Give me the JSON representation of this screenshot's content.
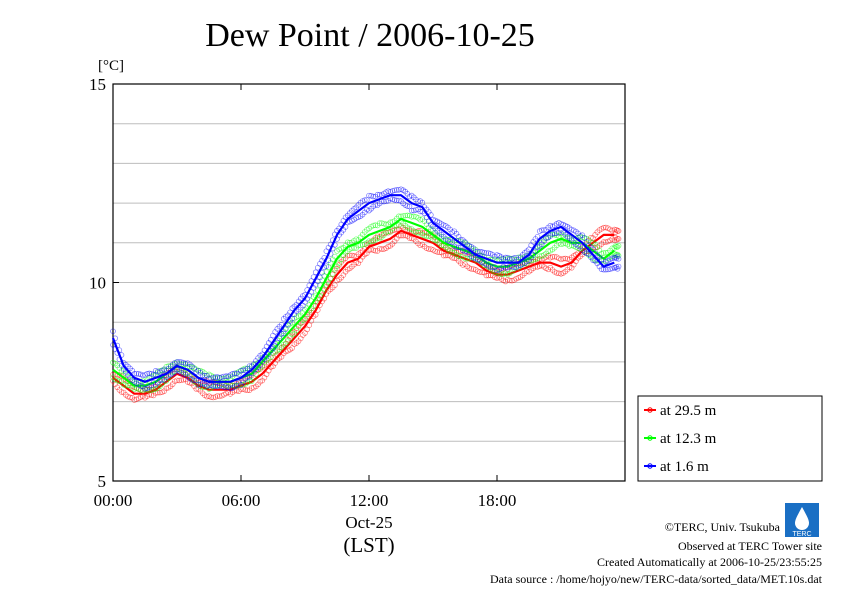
{
  "chart_data": {
    "type": "line",
    "title": "Dew Point / 2006-10-25",
    "ylabel": "[°C]",
    "xlabel": "(LST)",
    "x_date_label": "Oct-25",
    "ylim": [
      5,
      15
    ],
    "xlim": [
      0,
      24
    ],
    "x_ticks": [
      {
        "x": 0,
        "label": "00:00"
      },
      {
        "x": 6,
        "label": "06:00"
      },
      {
        "x": 12,
        "label": "12:00"
      },
      {
        "x": 18,
        "label": "18:00"
      }
    ],
    "y_ticks": [
      {
        "y": 5,
        "label": "5"
      },
      {
        "y": 10,
        "label": "10"
      },
      {
        "y": 15,
        "label": "15"
      }
    ],
    "grid_y": [
      6,
      7,
      8,
      9,
      10,
      11,
      12,
      13,
      14
    ],
    "legend": {
      "position": "right"
    },
    "series": [
      {
        "name": "at 29.5 m",
        "color": "#ff0000",
        "x": [
          0,
          0.5,
          1,
          1.5,
          2,
          2.5,
          3,
          3.5,
          4,
          4.5,
          5,
          5.5,
          6,
          6.5,
          7,
          7.5,
          8,
          8.5,
          9,
          9.5,
          10,
          10.5,
          11,
          11.5,
          12,
          12.5,
          13,
          13.5,
          14,
          14.5,
          15,
          15.5,
          16,
          16.5,
          17,
          17.5,
          18,
          18.5,
          19,
          19.5,
          20,
          20.5,
          21,
          21.5,
          22,
          22.5,
          23,
          23.5
        ],
        "values": [
          7.6,
          7.4,
          7.2,
          7.2,
          7.3,
          7.5,
          7.7,
          7.6,
          7.4,
          7.3,
          7.3,
          7.3,
          7.4,
          7.5,
          7.7,
          8.0,
          8.3,
          8.6,
          8.9,
          9.3,
          9.8,
          10.2,
          10.5,
          10.6,
          10.9,
          11.0,
          11.1,
          11.3,
          11.2,
          11.1,
          11.0,
          10.8,
          10.7,
          10.6,
          10.5,
          10.3,
          10.2,
          10.2,
          10.3,
          10.4,
          10.5,
          10.5,
          10.4,
          10.5,
          10.8,
          11.0,
          11.2,
          11.2
        ]
      },
      {
        "name": "at 12.3 m",
        "color": "#00ff00",
        "x": [
          0,
          0.5,
          1,
          1.5,
          2,
          2.5,
          3,
          3.5,
          4,
          4.5,
          5,
          5.5,
          6,
          6.5,
          7,
          7.5,
          8,
          8.5,
          9,
          9.5,
          10,
          10.5,
          11,
          11.5,
          12,
          12.5,
          13,
          13.5,
          14,
          14.5,
          15,
          15.5,
          16,
          16.5,
          17,
          17.5,
          18,
          18.5,
          19,
          19.5,
          20,
          20.5,
          21,
          21.5,
          22,
          22.5,
          23,
          23.5
        ],
        "values": [
          7.8,
          7.6,
          7.4,
          7.4,
          7.5,
          7.7,
          7.9,
          7.8,
          7.6,
          7.5,
          7.5,
          7.5,
          7.6,
          7.7,
          8.0,
          8.3,
          8.6,
          8.9,
          9.2,
          9.6,
          10.1,
          10.6,
          10.9,
          11.0,
          11.2,
          11.3,
          11.4,
          11.6,
          11.5,
          11.4,
          11.2,
          11.0,
          10.9,
          10.8,
          10.7,
          10.5,
          10.4,
          10.4,
          10.5,
          10.6,
          10.8,
          11.0,
          11.1,
          11.0,
          11.0,
          10.8,
          10.6,
          10.8
        ]
      },
      {
        "name": "at 1.6 m",
        "color": "#0000ff",
        "x": [
          0,
          0.5,
          1,
          1.5,
          2,
          2.5,
          3,
          3.5,
          4,
          4.5,
          5,
          5.5,
          6,
          6.5,
          7,
          7.5,
          8,
          8.5,
          9,
          9.5,
          10,
          10.5,
          11,
          11.5,
          12,
          12.5,
          13,
          13.5,
          14,
          14.5,
          15,
          15.5,
          16,
          16.5,
          17,
          17.5,
          18,
          18.5,
          19,
          19.5,
          20,
          20.5,
          21,
          21.5,
          22,
          22.5,
          23,
          23.5
        ],
        "values": [
          8.6,
          7.9,
          7.6,
          7.5,
          7.6,
          7.7,
          7.9,
          7.8,
          7.6,
          7.5,
          7.5,
          7.5,
          7.6,
          7.8,
          8.1,
          8.5,
          8.9,
          9.3,
          9.6,
          10.1,
          10.6,
          11.2,
          11.6,
          11.8,
          12.0,
          12.1,
          12.2,
          12.2,
          12.0,
          11.9,
          11.5,
          11.3,
          11.1,
          10.9,
          10.7,
          10.6,
          10.5,
          10.5,
          10.5,
          10.7,
          11.1,
          11.3,
          11.4,
          11.2,
          11.0,
          10.7,
          10.4,
          10.5
        ]
      }
    ]
  },
  "footer": {
    "copyright": "©TERC, Univ. Tsukuba",
    "observed": "Observed at TERC Tower site",
    "created": "Created Automatically at 2006-10-25/23:55:25",
    "source": "Data source : /home/hojyo/new/TERC-data/sorted_data/MET.10s.dat",
    "logo_text": "TERC"
  }
}
